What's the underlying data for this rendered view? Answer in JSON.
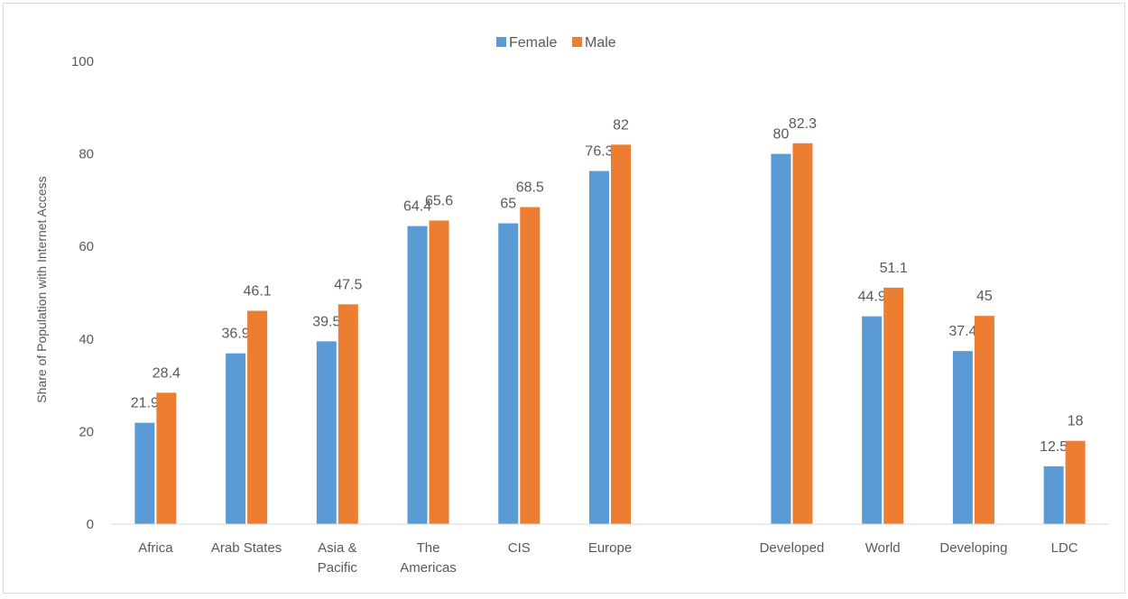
{
  "chart_data": {
    "type": "bar",
    "title": "",
    "xlabel": "",
    "ylabel": "Share of Population  with Internet Access",
    "ylim": [
      0,
      100
    ],
    "yticks": [
      0,
      20,
      40,
      60,
      80,
      100
    ],
    "grid": false,
    "legend_position": "top-center",
    "categories": [
      [
        "Africa"
      ],
      [
        "Arab States"
      ],
      [
        "Asia &",
        "Pacific"
      ],
      [
        "The",
        "Americas"
      ],
      [
        "CIS"
      ],
      [
        "Europe"
      ],
      [
        ""
      ],
      [
        "Developed"
      ],
      [
        "World"
      ],
      [
        "Developing"
      ],
      [
        "LDC"
      ]
    ],
    "series": [
      {
        "name": "Female",
        "color": "#5b9bd5",
        "values": [
          21.9,
          36.9,
          39.5,
          64.4,
          65,
          76.3,
          null,
          80,
          44.9,
          37.4,
          12.5
        ]
      },
      {
        "name": "Male",
        "color": "#ed7d31",
        "values": [
          28.4,
          46.1,
          47.5,
          65.6,
          68.5,
          82,
          null,
          82.3,
          51.1,
          45,
          18
        ]
      }
    ]
  }
}
